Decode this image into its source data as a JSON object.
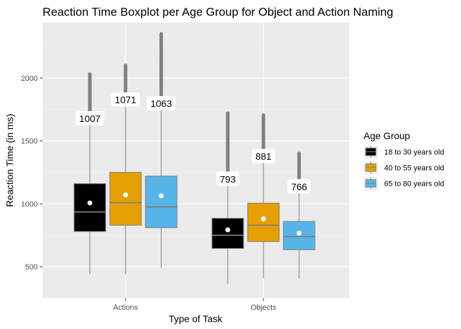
{
  "chart_data": {
    "type": "boxplot",
    "title": "Reaction Time Boxplot per Age Group for Object and Action Naming",
    "xlabel": "Type of Task",
    "ylabel": "Reaction Time (in ms)",
    "categories": [
      "Actions",
      "Objects"
    ],
    "y_ticks": [
      500,
      1000,
      1500,
      2000
    ],
    "ylim": [
      250,
      2440
    ],
    "grid": true,
    "legend": {
      "title": "Age Group",
      "position": "right"
    },
    "series": [
      {
        "name": "18 to 30 years old",
        "color": "#000000",
        "boxes": [
          {
            "category": "Actions",
            "whisker_low": 440,
            "q1": 780,
            "median": 935,
            "q3": 1160,
            "whisker_high": 1720,
            "mean": 1007,
            "mean_label": "1007",
            "outlier_range": [
              1720,
              2030
            ]
          },
          {
            "category": "Objects",
            "whisker_low": 365,
            "q1": 645,
            "median": 750,
            "q3": 885,
            "whisker_high": 1240,
            "mean": 793,
            "mean_label": "793",
            "outlier_range": [
              1240,
              1720
            ]
          }
        ]
      },
      {
        "name": "40 to 55 years old",
        "color": "#E69F00",
        "boxes": [
          {
            "category": "Actions",
            "whisker_low": 440,
            "q1": 830,
            "median": 1010,
            "q3": 1250,
            "whisker_high": 1870,
            "mean": 1071,
            "mean_label": "1071",
            "outlier_range": [
              1870,
              2100
            ]
          },
          {
            "category": "Objects",
            "whisker_low": 410,
            "q1": 700,
            "median": 830,
            "q3": 1005,
            "whisker_high": 1420,
            "mean": 881,
            "mean_label": "881",
            "outlier_range": [
              1420,
              1705
            ]
          }
        ]
      },
      {
        "name": "65 to 80 years old",
        "color": "#56B4E9",
        "boxes": [
          {
            "category": "Actions",
            "whisker_low": 490,
            "q1": 810,
            "median": 975,
            "q3": 1220,
            "whisker_high": 1840,
            "mean": 1063,
            "mean_label": "1063",
            "outlier_range": [
              1840,
              2350
            ]
          },
          {
            "category": "Objects",
            "whisker_low": 405,
            "q1": 635,
            "median": 740,
            "q3": 860,
            "whisker_high": 1180,
            "mean": 766,
            "mean_label": "766",
            "outlier_range": [
              1180,
              1400
            ]
          }
        ]
      }
    ]
  }
}
